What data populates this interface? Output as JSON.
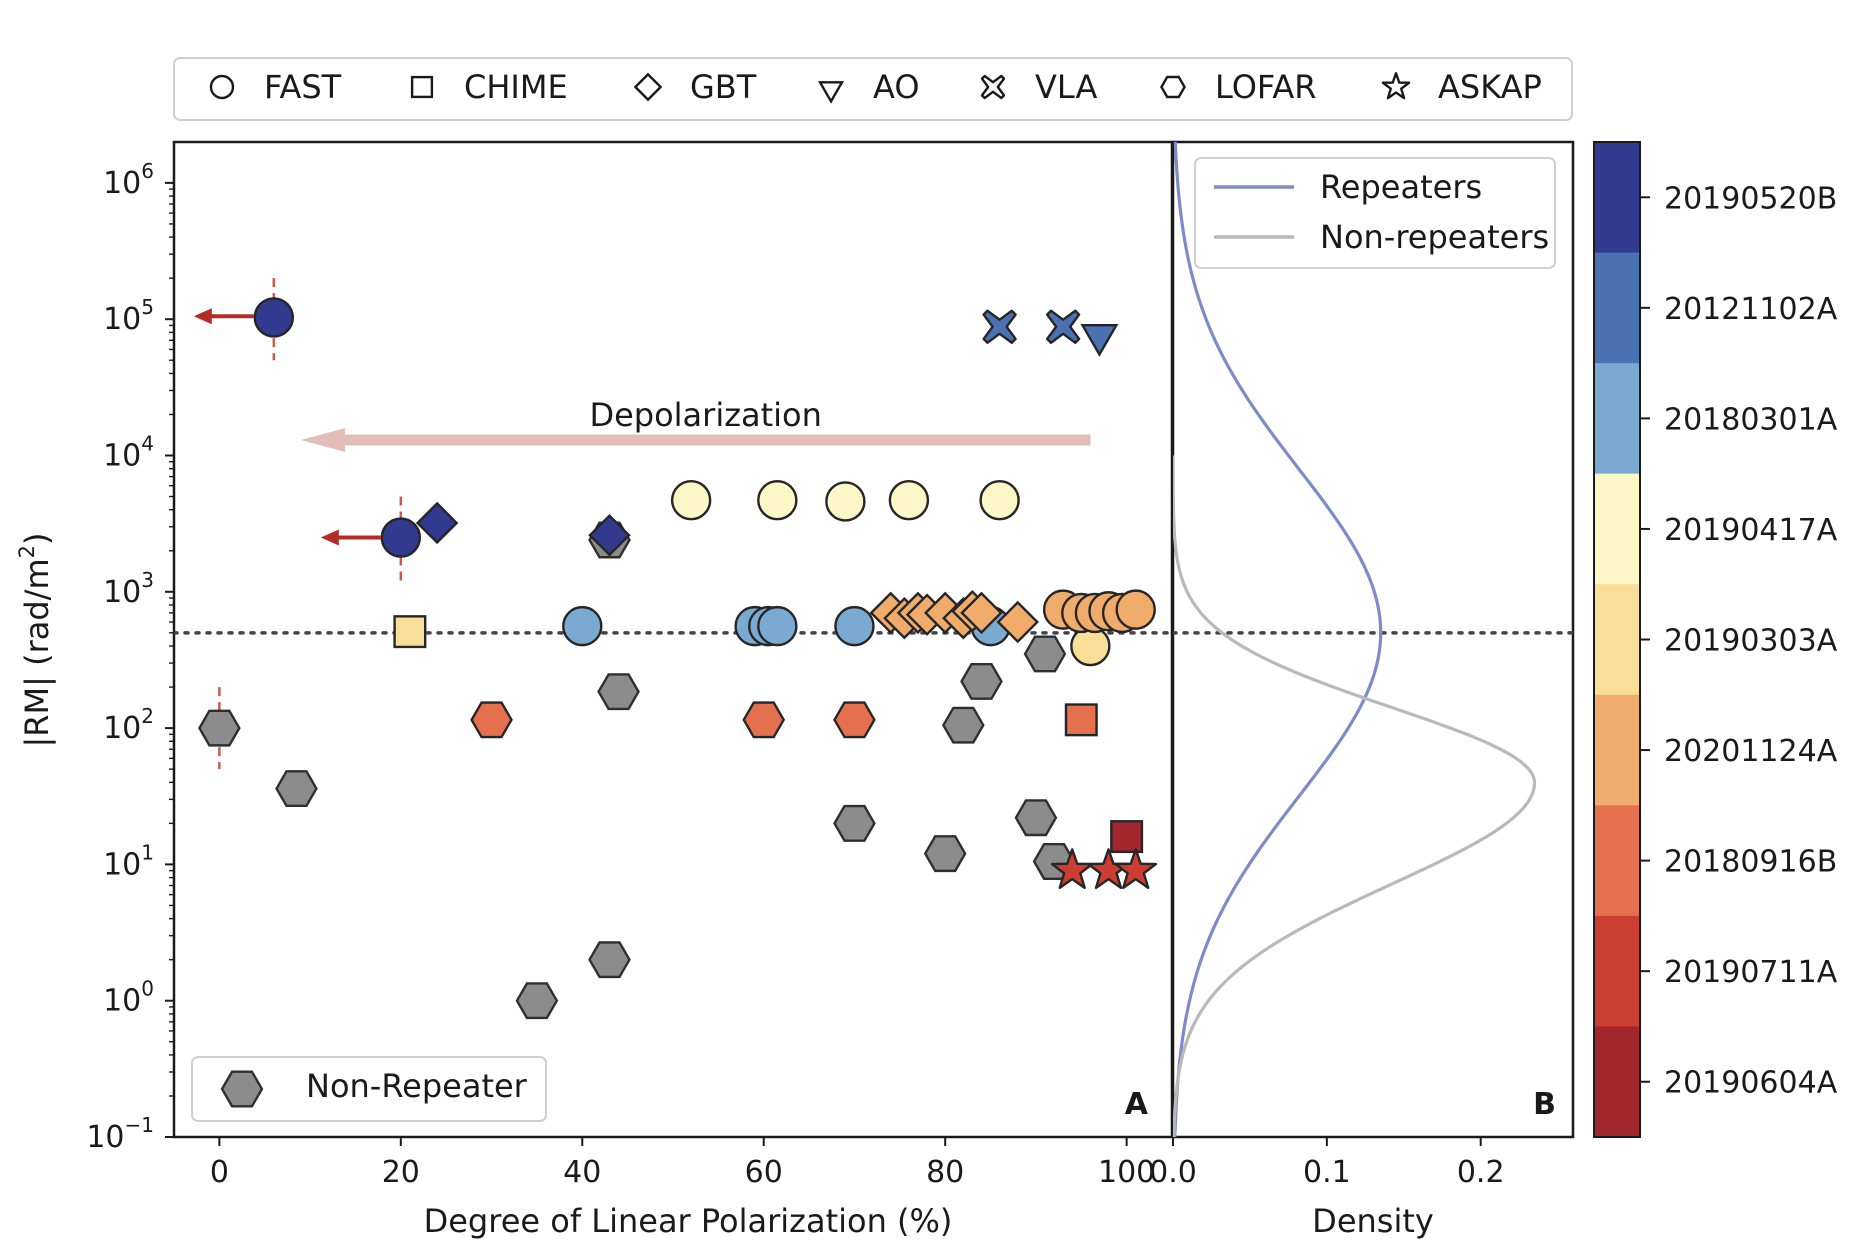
{
  "chart_data": {
    "type": "scatter",
    "panels": {
      "A": {
        "label": "A",
        "xlabel": "Degree of Linear Polarization (%)",
        "ylabel": "|RM| (rad/m",
        "ylabel_sup": "2",
        "ylabel_close": ")",
        "xlim": [
          -5,
          105
        ],
        "ylim_log10": [
          -1,
          6.3
        ],
        "xticks": [
          {
            "value": 0,
            "label": "0"
          },
          {
            "value": 20,
            "label": "20"
          },
          {
            "value": 40,
            "label": "40"
          },
          {
            "value": 60,
            "label": "60"
          },
          {
            "value": 80,
            "label": "80"
          },
          {
            "value": 100,
            "label": "100"
          }
        ],
        "yticks": [
          {
            "exp": -1,
            "base": "10",
            "sup": "−1"
          },
          {
            "exp": 0,
            "base": "10",
            "sup": "0"
          },
          {
            "exp": 1,
            "base": "10",
            "sup": "1"
          },
          {
            "exp": 2,
            "base": "10",
            "sup": "2"
          },
          {
            "exp": 3,
            "base": "10",
            "sup": "3"
          },
          {
            "exp": 4,
            "base": "10",
            "sup": "4"
          },
          {
            "exp": 5,
            "base": "10",
            "sup": "5"
          },
          {
            "exp": 6,
            "base": "10",
            "sup": "6"
          }
        ],
        "reference_rm": 500,
        "annotation": "Depolarization",
        "annotation_arrow": {
          "from_x": 96,
          "to_x": 9,
          "rm": 13000,
          "color": "#e4beb6"
        },
        "upper_limits": [
          {
            "x": 6,
            "rm": 105000
          },
          {
            "x": 20,
            "rm": 2500
          }
        ],
        "error_bars": [
          {
            "x": 6,
            "rm_low": 50000,
            "rm_high": 200000
          },
          {
            "x": 20,
            "rm_low": 1200,
            "rm_high": 5000
          },
          {
            "x": 0,
            "rm_low": 50,
            "rm_high": 200
          }
        ],
        "non_repeaters": [
          {
            "x": 0,
            "rm": 100
          },
          {
            "x": 8.5,
            "rm": 36
          },
          {
            "x": 35,
            "rm": 1
          },
          {
            "x": 43,
            "rm": 2
          },
          {
            "x": 44,
            "rm": 185
          },
          {
            "x": 70,
            "rm": 20
          },
          {
            "x": 80,
            "rm": 12
          },
          {
            "x": 82,
            "rm": 105
          },
          {
            "x": 84,
            "rm": 220
          },
          {
            "x": 90,
            "rm": 22
          },
          {
            "x": 91,
            "rm": 350
          },
          {
            "x": 92,
            "rm": 10.5
          },
          {
            "x": 43,
            "rm": 2400
          }
        ],
        "repeaters": [
          {
            "frb": "20190520B",
            "telescope": "FAST",
            "x": 6,
            "rm": 103000
          },
          {
            "frb": "20190520B",
            "telescope": "FAST",
            "x": 20,
            "rm": 2500
          },
          {
            "frb": "20190520B",
            "telescope": "GBT",
            "x": 24,
            "rm": 3200
          },
          {
            "frb": "20190520B",
            "telescope": "GBT",
            "x": 43,
            "rm": 2600
          },
          {
            "frb": "20121102A",
            "telescope": "VLA",
            "x": 86,
            "rm": 88000
          },
          {
            "frb": "20121102A",
            "telescope": "VLA",
            "x": 93,
            "rm": 88000
          },
          {
            "frb": "20121102A",
            "telescope": "AO",
            "x": 97,
            "rm": 80000
          },
          {
            "frb": "20180301A",
            "telescope": "FAST",
            "x": 40,
            "rm": 560
          },
          {
            "frb": "20180301A",
            "telescope": "FAST",
            "x": 59,
            "rm": 560
          },
          {
            "frb": "20180301A",
            "telescope": "FAST",
            "x": 60.5,
            "rm": 560
          },
          {
            "frb": "20180301A",
            "telescope": "FAST",
            "x": 61.5,
            "rm": 560
          },
          {
            "frb": "20180301A",
            "telescope": "FAST",
            "x": 70,
            "rm": 560
          },
          {
            "frb": "20180301A",
            "telescope": "FAST",
            "x": 85,
            "rm": 560
          },
          {
            "frb": "20190417A",
            "telescope": "FAST",
            "x": 52,
            "rm": 4700
          },
          {
            "frb": "20190417A",
            "telescope": "FAST",
            "x": 61.5,
            "rm": 4700
          },
          {
            "frb": "20190417A",
            "telescope": "FAST",
            "x": 69,
            "rm": 4600
          },
          {
            "frb": "20190417A",
            "telescope": "FAST",
            "x": 76,
            "rm": 4700
          },
          {
            "frb": "20190417A",
            "telescope": "FAST",
            "x": 86,
            "rm": 4700
          },
          {
            "frb": "20190303A",
            "telescope": "CHIME",
            "x": 21,
            "rm": 510
          },
          {
            "frb": "20190303A",
            "telescope": "FAST",
            "x": 96,
            "rm": 400
          },
          {
            "frb": "20201124A",
            "telescope": "GBT",
            "x": 74,
            "rm": 700
          },
          {
            "frb": "20201124A",
            "telescope": "GBT",
            "x": 75.5,
            "rm": 640
          },
          {
            "frb": "20201124A",
            "telescope": "GBT",
            "x": 77,
            "rm": 700
          },
          {
            "frb": "20201124A",
            "telescope": "GBT",
            "x": 78,
            "rm": 680
          },
          {
            "frb": "20201124A",
            "telescope": "GBT",
            "x": 80,
            "rm": 700
          },
          {
            "frb": "20201124A",
            "telescope": "GBT",
            "x": 82,
            "rm": 640
          },
          {
            "frb": "20201124A",
            "telescope": "GBT",
            "x": 83,
            "rm": 720
          },
          {
            "frb": "20201124A",
            "telescope": "GBT",
            "x": 84,
            "rm": 700
          },
          {
            "frb": "20201124A",
            "telescope": "GBT",
            "x": 88,
            "rm": 600
          },
          {
            "frb": "20201124A",
            "telescope": "FAST",
            "x": 93,
            "rm": 740
          },
          {
            "frb": "20201124A",
            "telescope": "FAST",
            "x": 95,
            "rm": 700
          },
          {
            "frb": "20201124A",
            "telescope": "FAST",
            "x": 96.5,
            "rm": 700
          },
          {
            "frb": "20201124A",
            "telescope": "FAST",
            "x": 98,
            "rm": 720
          },
          {
            "frb": "20201124A",
            "telescope": "FAST",
            "x": 99.5,
            "rm": 700
          },
          {
            "frb": "20201124A",
            "telescope": "FAST",
            "x": 101,
            "rm": 740
          },
          {
            "frb": "20180916B",
            "telescope": "LOFAR",
            "x": 30,
            "rm": 115
          },
          {
            "frb": "20180916B",
            "telescope": "LOFAR",
            "x": 60,
            "rm": 115
          },
          {
            "frb": "20180916B",
            "telescope": "LOFAR",
            "x": 70,
            "rm": 115
          },
          {
            "frb": "20180916B",
            "telescope": "CHIME",
            "x": 95,
            "rm": 115
          },
          {
            "frb": "20190604A",
            "telescope": "CHIME",
            "x": 100,
            "rm": 16
          },
          {
            "frb": "20190711A",
            "telescope": "ASKAP",
            "x": 94,
            "rm": 9
          },
          {
            "frb": "20190711A",
            "telescope": "ASKAP",
            "x": 98,
            "rm": 9
          },
          {
            "frb": "20190711A",
            "telescope": "ASKAP",
            "x": 101,
            "rm": 9
          }
        ],
        "legend_non_repeater": "Non-Repeater"
      },
      "B": {
        "label": "B",
        "xlabel": "Density",
        "xlim": [
          0,
          0.26
        ],
        "xticks": [
          {
            "value": 0,
            "label": "0.0"
          },
          {
            "value": 0.1,
            "label": "0.1"
          },
          {
            "value": 0.2,
            "label": "0.2"
          }
        ],
        "series": [
          {
            "name": "Repeaters",
            "color": "#7b8cc6",
            "mu": 2.7,
            "sigma": 1.2,
            "amp": 0.135,
            "log_rm_range": [
              -1,
              6.3
            ]
          },
          {
            "name": "Non-repeaters",
            "color": "#b9b9b9",
            "mu": 1.6,
            "sigma": 0.55,
            "amp": 0.235,
            "log_rm_range": [
              -1,
              4
            ]
          }
        ],
        "legend_position": "top-left"
      }
    },
    "telescope_legend": [
      {
        "name": "FAST",
        "marker": "circle"
      },
      {
        "name": "CHIME",
        "marker": "square"
      },
      {
        "name": "GBT",
        "marker": "diamond"
      },
      {
        "name": "AO",
        "marker": "triangle-down"
      },
      {
        "name": "VLA",
        "marker": "x"
      },
      {
        "name": "LOFAR",
        "marker": "hexagon"
      },
      {
        "name": "ASKAP",
        "marker": "star"
      }
    ],
    "colorbar": [
      {
        "name": "20190520B",
        "color": "#313a8f"
      },
      {
        "name": "20121102A",
        "color": "#4a71b2"
      },
      {
        "name": "20180301A",
        "color": "#7aaad2"
      },
      {
        "name": "20190417A",
        "color": "#fdf7c8"
      },
      {
        "name": "20190303A",
        "color": "#f8de96"
      },
      {
        "name": "20201124A",
        "color": "#f1ac6c"
      },
      {
        "name": "20180916B",
        "color": "#e5704d"
      },
      {
        "name": "20190711A",
        "color": "#cc3e32"
      },
      {
        "name": "20190604A",
        "color": "#a1272d"
      }
    ],
    "colors": {
      "non_repeater": "#8c8c8c",
      "limit_arrow": "#b52b25",
      "error_bar": "#cd5a50",
      "reference_line": "#444444"
    }
  }
}
